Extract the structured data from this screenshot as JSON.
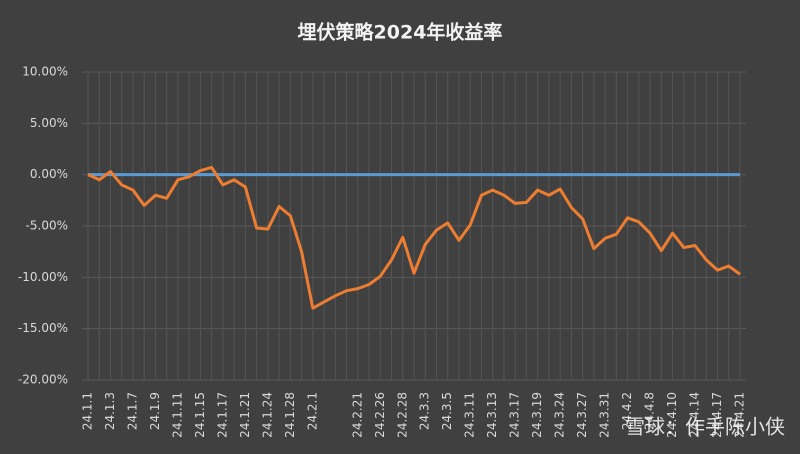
{
  "chart_data": {
    "type": "line",
    "title": "埋伏策略2024年收益率",
    "categories": [
      "24.1.1",
      null,
      "24.1.3",
      null,
      "24.1.7",
      null,
      "24.1.9",
      null,
      "24.1.11",
      null,
      "24.1.15",
      null,
      "24.1.17",
      null,
      "24.1.21",
      null,
      "24.1.24",
      null,
      "24.1.28",
      null,
      "24.2.1",
      null,
      null,
      null,
      "24.2.21",
      null,
      "24.2.26",
      null,
      "24.2.28",
      null,
      "24.3.3",
      null,
      "24.3.5",
      null,
      "24.3.11",
      null,
      "24.3.13",
      null,
      "24.3.17",
      null,
      "24.3.19",
      null,
      "24.3.24",
      null,
      "24.3.27",
      null,
      "24.3.31",
      null,
      "24.4.2",
      null,
      "24.4.8",
      null,
      "24.4.10",
      null,
      "24.4.14",
      null,
      "24.4.17",
      null,
      "24.4.21"
    ],
    "series": [
      {
        "color": "#ed7d31",
        "values": [
          0.0,
          -0.5,
          0.3,
          -1.0,
          -1.5,
          -3.0,
          -2.0,
          -2.3,
          -0.5,
          -0.2,
          0.4,
          0.7,
          -1.0,
          -0.5,
          -1.2,
          -5.2,
          -5.3,
          -3.1,
          -4.0,
          -7.5,
          -13.0,
          -12.4,
          -11.8,
          -11.3,
          -11.1,
          -10.7,
          -9.9,
          -8.3,
          -6.1,
          -9.6,
          -6.8,
          -5.4,
          -4.7,
          -6.4,
          -4.9,
          -2.0,
          -1.5,
          -2.0,
          -2.8,
          -2.7,
          -1.5,
          -2.0,
          -1.4,
          -3.2,
          -4.3,
          -7.2,
          -6.2,
          -5.8,
          -4.2,
          -4.6,
          -5.7,
          -7.4,
          -5.7,
          -7.1,
          -6.9,
          -8.3,
          -9.3,
          -8.9,
          -9.7
        ]
      },
      {
        "color": "#5b9bd5",
        "values": [
          0,
          0,
          0,
          0,
          0,
          0,
          0,
          0,
          0,
          0,
          0,
          0,
          0,
          0,
          0,
          0,
          0,
          0,
          0,
          0,
          0,
          0,
          0,
          0,
          0,
          0,
          0,
          0,
          0,
          0,
          0,
          0,
          0,
          0,
          0,
          0,
          0,
          0,
          0,
          0,
          0,
          0,
          0,
          0,
          0,
          0,
          0,
          0,
          0,
          0,
          0,
          0,
          0,
          0,
          0,
          0,
          0,
          0,
          0
        ]
      }
    ],
    "ylim": [
      -20,
      10
    ],
    "yticks": [
      {
        "value": -20,
        "label": "-20.00%"
      },
      {
        "value": -15,
        "label": "-15.00%"
      },
      {
        "value": -10,
        "label": "-10.00%"
      },
      {
        "value": -5,
        "label": "-5.00%"
      },
      {
        "value": 0,
        "label": "0.00%"
      },
      {
        "value": 5,
        "label": "5.00%"
      },
      {
        "value": 10,
        "label": "10.00%"
      }
    ],
    "grid": true
  },
  "watermark": "雪球：作手陈小侠"
}
